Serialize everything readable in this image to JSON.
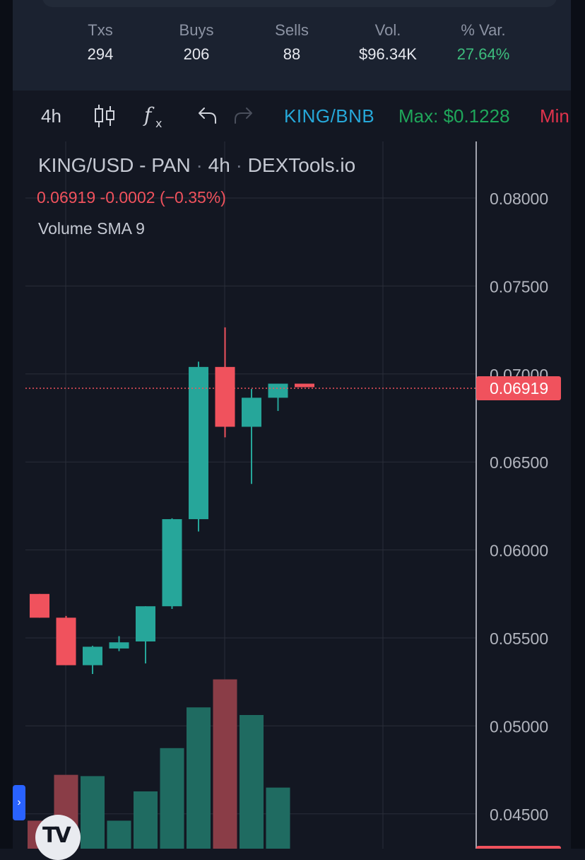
{
  "stats": [
    {
      "label": "Txs",
      "value": "294",
      "color": "#e6e8ee"
    },
    {
      "label": "Buys",
      "value": "206",
      "color": "#e6e8ee"
    },
    {
      "label": "Sells",
      "value": "88",
      "color": "#e6e8ee"
    },
    {
      "label": "Vol.",
      "value": "$96.34K",
      "color": "#e6e8ee"
    },
    {
      "label": "% Var.",
      "value": "27.64%",
      "color": "#3dbd7d"
    }
  ],
  "toolbar": {
    "interval": "4h",
    "pair": "KING/BNB",
    "max": "Max: $0.1228",
    "min": "Min",
    "icons": [
      "candlestick-icon",
      "indicators-icon",
      "undo-icon",
      "redo-icon"
    ]
  },
  "legend": {
    "symbol": "KING/USD - PAN",
    "interval": "4h",
    "source": "DEXTools.io",
    "separator": "·",
    "price": "0.06919",
    "change": "-0.0002",
    "change_pct": "(−0.35%)",
    "volume": "Volume SMA 9"
  },
  "colors": {
    "up": "#26a69a",
    "down": "#f0525d",
    "background": "#131722",
    "grid": "#2a2e39"
  },
  "chart_data": {
    "type": "candlestick",
    "title": "KING/USD - PAN · 4h · DEXTools.io",
    "ylim": [
      0.0432,
      0.0835
    ],
    "y_ticks": [
      "0.08000",
      "0.07500",
      "0.07000",
      "0.06500",
      "0.06000",
      "0.05500",
      "0.05000",
      "0.04500"
    ],
    "last_price_label": "0.06919",
    "last_price": 0.06919,
    "candles": [
      {
        "open": 0.0575,
        "close": 0.05615,
        "high": 0.0575,
        "low": 0.05615
      },
      {
        "open": 0.05615,
        "close": 0.05345,
        "high": 0.05625,
        "low": 0.05345
      },
      {
        "open": 0.05345,
        "close": 0.0545,
        "high": 0.05455,
        "low": 0.05295
      },
      {
        "open": 0.0544,
        "close": 0.05475,
        "high": 0.0551,
        "low": 0.05425
      },
      {
        "open": 0.0548,
        "close": 0.0568,
        "high": 0.0568,
        "low": 0.05355
      },
      {
        "open": 0.0568,
        "close": 0.06175,
        "high": 0.0618,
        "low": 0.05665
      },
      {
        "open": 0.06175,
        "close": 0.0704,
        "high": 0.0707,
        "low": 0.06105
      },
      {
        "open": 0.0704,
        "close": 0.067,
        "high": 0.07265,
        "low": 0.0664
      },
      {
        "open": 0.067,
        "close": 0.06865,
        "high": 0.06915,
        "low": 0.06375
      },
      {
        "open": 0.06865,
        "close": 0.06945,
        "high": 0.06945,
        "low": 0.0679
      },
      {
        "open": 0.06945,
        "close": 0.06925,
        "high": 0.06945,
        "low": 0.06925
      }
    ],
    "volume_relative": [
      0.22,
      0.58,
      0.57,
      0.22,
      0.45,
      0.79,
      1.11,
      1.33,
      1.05,
      0.48,
      0.0
    ],
    "volume_up": [
      false,
      false,
      true,
      true,
      true,
      true,
      true,
      false,
      true,
      true,
      false
    ]
  }
}
